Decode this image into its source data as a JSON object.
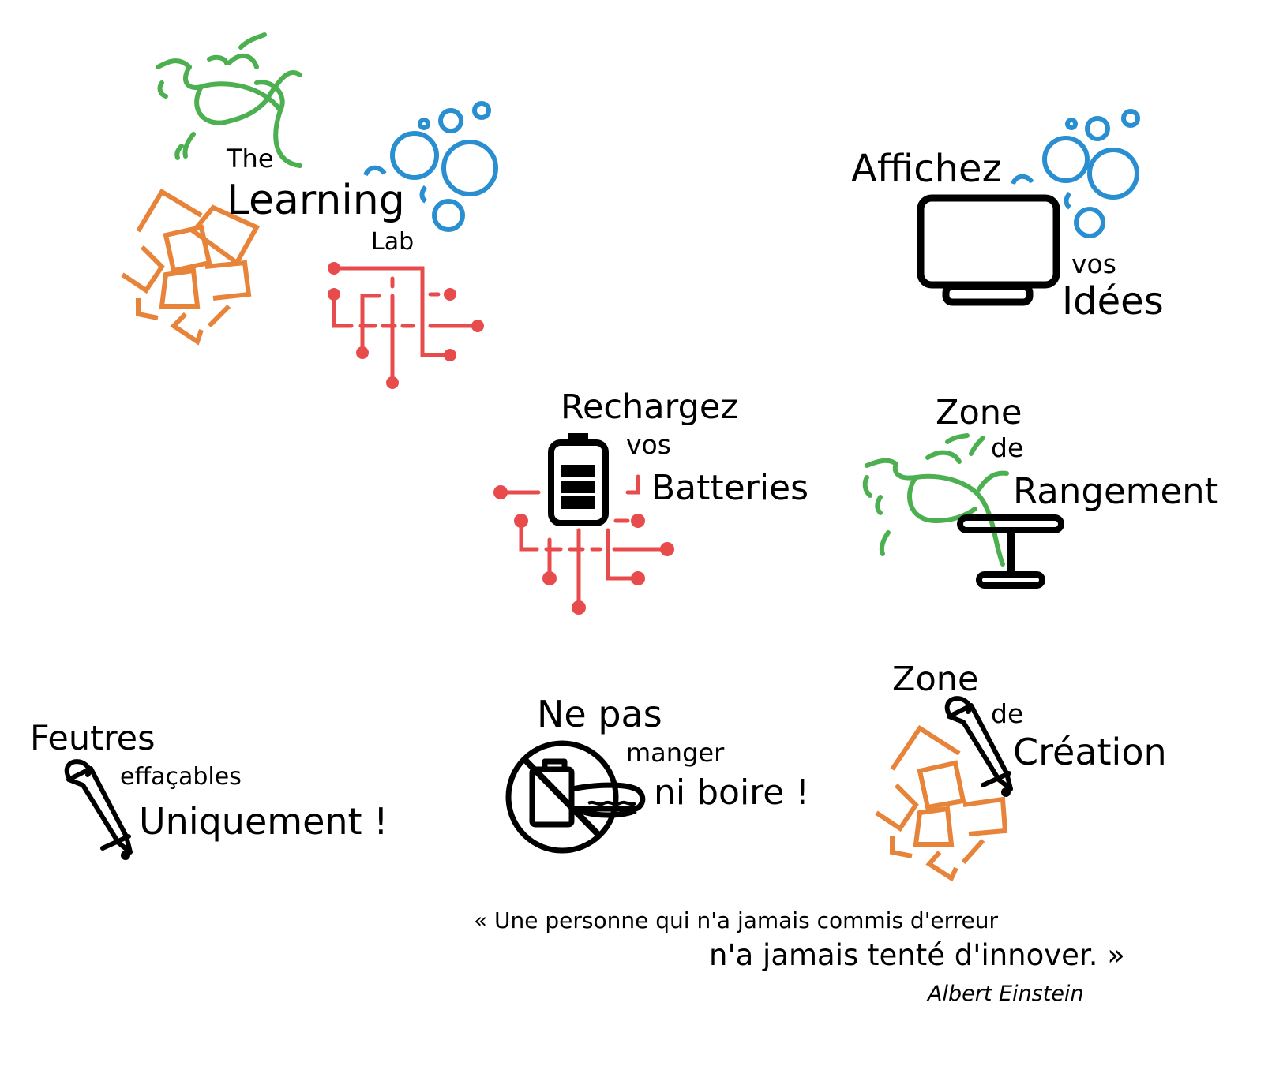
{
  "logo": {
    "word_the": "The",
    "word_learning": "Learning",
    "word_lab": "Lab"
  },
  "signs": {
    "affichez": {
      "line1": "Affichez",
      "line2": "vos",
      "line3": "Idées"
    },
    "recharge": {
      "line1": "Rechargez",
      "line2": "vos",
      "line3": "Batteries"
    },
    "rangement": {
      "line1": "Zone",
      "line2": "de",
      "line3": "Rangement"
    },
    "feutres": {
      "line1": "Feutres",
      "line2": "effaçables",
      "line3": "Uniquement !"
    },
    "manger": {
      "line1": "Ne pas",
      "line2": "manger",
      "line3": "ni boire !"
    },
    "creation": {
      "line1": "Zone",
      "line2": "de",
      "line3": "Création"
    }
  },
  "quote": {
    "line1": "« Une personne qui n'a jamais commis d'erreur",
    "line2": "n'a jamais tenté d'innover. »",
    "author": "Albert Einstein"
  },
  "colors": {
    "green": "#4caf50",
    "blue": "#2a8fd0",
    "orange": "#e8833a",
    "red": "#e84b4b",
    "black": "#000000"
  },
  "icons": [
    "vine-icon",
    "bubbles-icon",
    "sticky-notes-icon",
    "circuit-icon",
    "monitor-icon",
    "battery-icon",
    "table-icon",
    "marker-icon",
    "no-food-icon"
  ]
}
